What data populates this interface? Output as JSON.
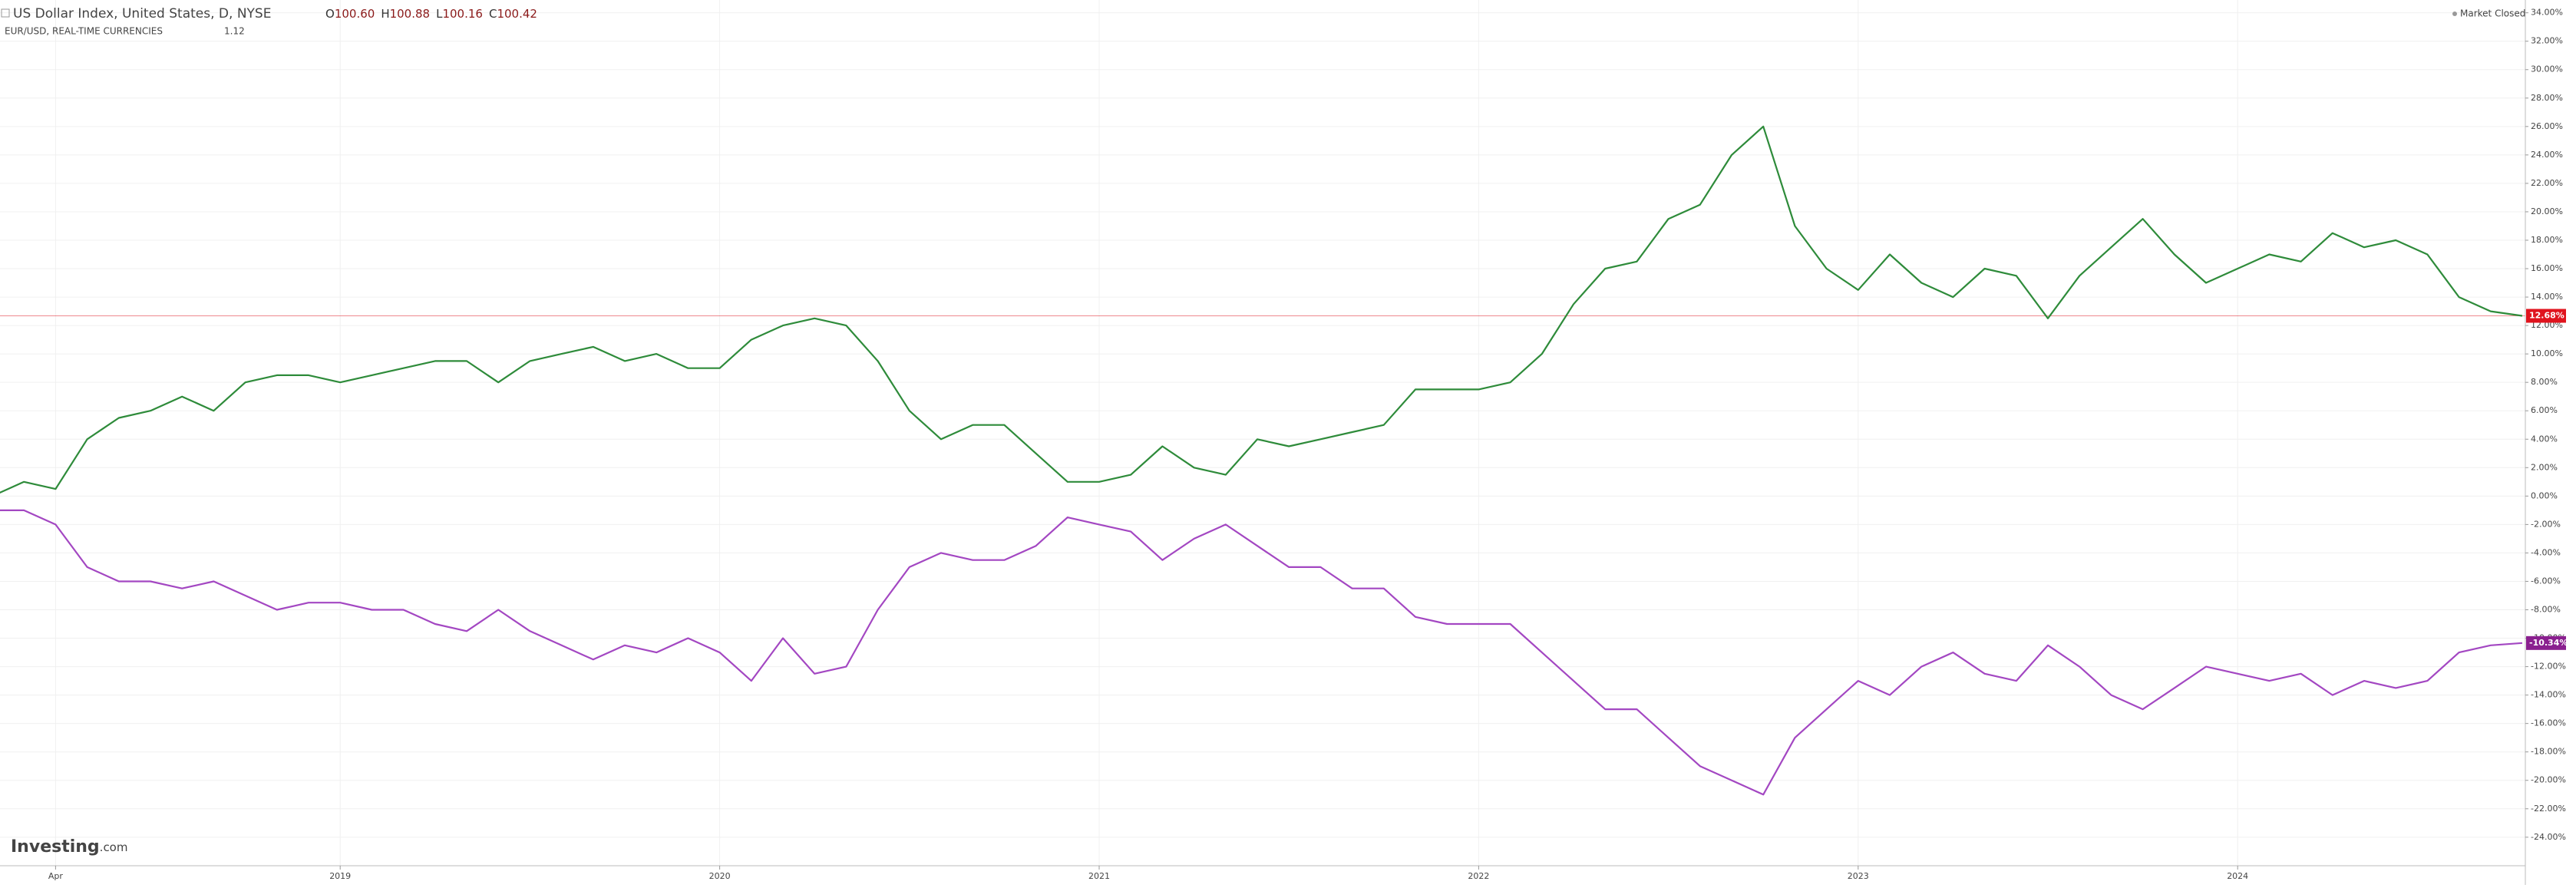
{
  "header": {
    "title": "US Dollar Index, United States, D, NYSE",
    "ohlc": [
      {
        "key": "O",
        "value": "100.60"
      },
      {
        "key": "H",
        "value": "100.88"
      },
      {
        "key": "L",
        "value": "100.16"
      },
      {
        "key": "C",
        "value": "100.42"
      }
    ],
    "compare_symbol": "EUR/USD, REAL-TIME CURRENCIES",
    "compare_value": "1.12",
    "status": "Market Closed",
    "logo": "Investing",
    "logo_suffix": ".com"
  },
  "chart_data": {
    "type": "line",
    "categories": [
      null,
      null,
      "Apr",
      null,
      null,
      null,
      null,
      null,
      null,
      null,
      null,
      "2019",
      null,
      null,
      null,
      null,
      null,
      null,
      null,
      null,
      null,
      null,
      null,
      "2020",
      null,
      null,
      null,
      null,
      null,
      null,
      null,
      null,
      null,
      null,
      null,
      "2021",
      null,
      null,
      null,
      null,
      null,
      null,
      null,
      null,
      null,
      null,
      null,
      "2022",
      null,
      null,
      null,
      null,
      null,
      null,
      null,
      null,
      null,
      null,
      null,
      "2023",
      null,
      null,
      null,
      null,
      null,
      null,
      null,
      null,
      null,
      null,
      null,
      "2024",
      null,
      null,
      null,
      null,
      null,
      null,
      null,
      null,
      null
    ],
    "series": [
      {
        "name": "US Dollar Index",
        "color": "#2e8b3a",
        "last_label": "12.68%",
        "last_color": "#e0141e",
        "values": [
          0,
          1,
          0.5,
          4,
          5.5,
          6,
          7,
          6,
          8,
          8.5,
          8.5,
          8,
          8.5,
          9,
          9.5,
          9.5,
          8,
          9.5,
          10,
          10.5,
          9.5,
          10,
          9,
          9,
          11,
          12,
          12.5,
          12,
          9.5,
          6,
          4,
          5,
          5,
          3,
          1,
          1,
          1.5,
          3.5,
          2,
          1.5,
          4,
          3.5,
          4,
          4.5,
          5,
          7.5,
          7.5,
          7.5,
          8,
          10,
          13.5,
          16,
          16.5,
          19.5,
          20.5,
          24,
          26,
          19,
          16,
          14.5,
          17,
          15,
          14,
          16,
          15.5,
          12.5,
          15.5,
          17.5,
          19.5,
          17,
          15,
          16,
          17,
          16.5,
          18.5,
          17.5,
          18,
          17,
          14,
          13,
          12.68
        ]
      },
      {
        "name": "EUR/USD",
        "color": "#a347c2",
        "last_label": "-10.34%",
        "last_color": "#8a1f8f",
        "values": [
          -1,
          -1,
          -2,
          -5,
          -6,
          -6,
          -6.5,
          -6,
          -7,
          -8,
          -7.5,
          -7.5,
          -8,
          -8,
          -9,
          -9.5,
          -8,
          -9.5,
          -10.5,
          -11.5,
          -10.5,
          -11,
          -10,
          -11,
          -13,
          -10,
          -12.5,
          -12,
          -8,
          -5,
          -4,
          -4.5,
          -4.5,
          -3.5,
          -1.5,
          -2,
          -2.5,
          -4.5,
          -3,
          -2,
          -3.5,
          -5,
          -5,
          -6.5,
          -6.5,
          -8.5,
          -9,
          -9,
          -9,
          -11,
          -13,
          -15,
          -15,
          -17,
          -19,
          -20,
          -21,
          -17,
          -15,
          -13,
          -14,
          -12,
          -11,
          -12.5,
          -13,
          -10.5,
          -12,
          -14,
          -15,
          -13.5,
          -12,
          -12.5,
          -13,
          -12.5,
          -14,
          -13,
          -13.5,
          -13,
          -11,
          -10.5,
          -10.34
        ]
      }
    ],
    "ylim": [
      -25.9,
      34.9
    ],
    "yticks": [
      {
        "value": -24,
        "label": "-24.00%"
      },
      {
        "value": -22,
        "label": "-22.00%"
      },
      {
        "value": -20,
        "label": "-20.00%"
      },
      {
        "value": -18,
        "label": "-18.00%"
      },
      {
        "value": -16,
        "label": "-16.00%"
      },
      {
        "value": -14,
        "label": "-14.00%"
      },
      {
        "value": -12,
        "label": "-12.00%"
      },
      {
        "value": -10,
        "label": "-10.00%"
      },
      {
        "value": -8,
        "label": "-8.00%"
      },
      {
        "value": -6,
        "label": "-6.00%"
      },
      {
        "value": -4,
        "label": "-4.00%"
      },
      {
        "value": -2,
        "label": "-2.00%"
      },
      {
        "value": 0,
        "label": "0.00%"
      },
      {
        "value": 2,
        "label": "2.00%"
      },
      {
        "value": 4,
        "label": "4.00%"
      },
      {
        "value": 6,
        "label": "6.00%"
      },
      {
        "value": 8,
        "label": "8.00%"
      },
      {
        "value": 10,
        "label": "10.00%"
      },
      {
        "value": 12,
        "label": "12.00%"
      },
      {
        "value": 14,
        "label": "14.00%"
      },
      {
        "value": 16,
        "label": "16.00%"
      },
      {
        "value": 18,
        "label": "18.00%"
      },
      {
        "value": 20,
        "label": "20.00%"
      },
      {
        "value": 22,
        "label": "22.00%"
      },
      {
        "value": 24,
        "label": "24.00%"
      },
      {
        "value": 26,
        "label": "26.00%"
      },
      {
        "value": 28,
        "label": "28.00%"
      },
      {
        "value": 30,
        "label": "30.00%"
      },
      {
        "value": 32,
        "label": "32.00%"
      },
      {
        "value": 34,
        "label": "34.00%"
      }
    ],
    "grid": true
  }
}
